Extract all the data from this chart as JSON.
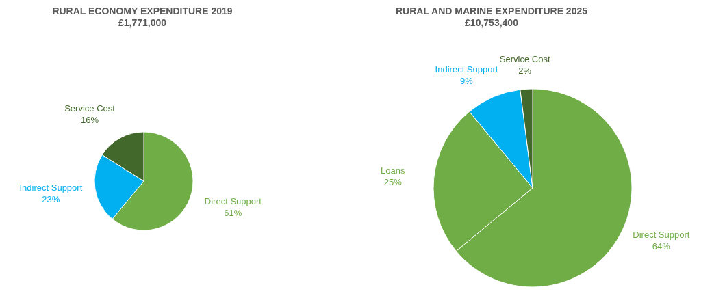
{
  "chart_data": [
    {
      "type": "pie",
      "title": "RURAL ECONOMY EXPENDITURE 2019",
      "subtitle": "£1,771,000",
      "categories": [
        "Direct Support",
        "Indirect Support",
        "Service Cost"
      ],
      "values": [
        61,
        23,
        16
      ],
      "value_labels": [
        "61%",
        "23%",
        "16%"
      ],
      "colors": [
        "#70ad47",
        "#00b0f0",
        "#43682b"
      ],
      "legend": false
    },
    {
      "type": "pie",
      "title": "RURAL AND MARINE EXPENDITURE 2025",
      "subtitle": "£10,753,400",
      "categories": [
        "Direct Support",
        "Loans",
        "Indirect Support",
        "Service Cost"
      ],
      "values": [
        64,
        25,
        9,
        2
      ],
      "value_labels": [
        "64%",
        "25%",
        "9%",
        "2%"
      ],
      "colors": [
        "#70ad47",
        "#70ad47",
        "#00b0f0",
        "#43682b"
      ],
      "legend": false
    }
  ]
}
